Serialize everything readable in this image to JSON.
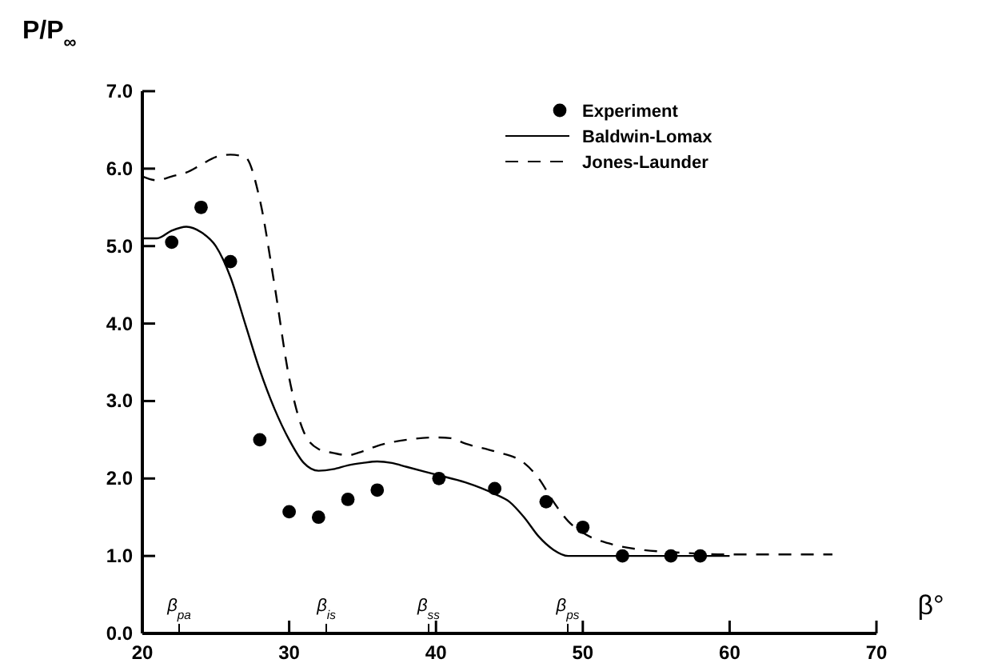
{
  "chart_data": {
    "type": "line",
    "xlabel": "β°",
    "ylabel": "P/P$_{∞}$",
    "xlim": [
      20,
      70
    ],
    "ylim": [
      0,
      7
    ],
    "xticks": [
      20,
      30,
      40,
      50,
      60,
      70
    ],
    "yticks": [
      {
        "value": 0,
        "label": "0.0"
      },
      {
        "value": 1,
        "label": "1.0"
      },
      {
        "value": 2,
        "label": "2.0"
      },
      {
        "value": 3,
        "label": "3.0"
      },
      {
        "value": 4,
        "label": "4.0"
      },
      {
        "value": 5,
        "label": "5.0"
      },
      {
        "value": 6,
        "label": "6.0"
      },
      {
        "value": 7,
        "label": "7.0"
      }
    ],
    "legend": "top right",
    "grid": false,
    "series": [
      {
        "name": "Experiment",
        "type": "scatter",
        "marker": "circle",
        "color": "#000000",
        "x": [
          22,
          24,
          26,
          28,
          30,
          32,
          34,
          36,
          40.2,
          44,
          47.5,
          50,
          52.7,
          56,
          58
        ],
        "values": [
          5.05,
          5.5,
          4.8,
          2.5,
          1.57,
          1.5,
          1.73,
          1.85,
          2.0,
          1.87,
          1.7,
          1.37,
          1.0,
          1.0,
          1.0
        ]
      },
      {
        "name": "Baldwin-Lomax",
        "line_style": "solid",
        "color": "#000000",
        "x": [
          20,
          21,
          22,
          23,
          24,
          25,
          26,
          27,
          28,
          29,
          30,
          31,
          32,
          33,
          34,
          35,
          36,
          37,
          38,
          40,
          42,
          44,
          45,
          46,
          47,
          48,
          49,
          52,
          58,
          60
        ],
        "values": [
          5.1,
          5.1,
          5.2,
          5.25,
          5.18,
          5.0,
          4.6,
          4.0,
          3.4,
          2.9,
          2.5,
          2.2,
          2.1,
          2.12,
          2.17,
          2.2,
          2.22,
          2.2,
          2.15,
          2.05,
          1.95,
          1.8,
          1.7,
          1.5,
          1.25,
          1.08,
          1.0,
          1.0,
          1.0,
          1.0
        ]
      },
      {
        "name": "Jones-Launder",
        "line_style": "dashed",
        "color": "#000000",
        "x": [
          20,
          21,
          22,
          23,
          24,
          25,
          26,
          27,
          28,
          29,
          30,
          31,
          32,
          33,
          34,
          35,
          36,
          38,
          40,
          41,
          42,
          44,
          46,
          47,
          48,
          49,
          50,
          52,
          54,
          56,
          60,
          67
        ],
        "values": [
          5.9,
          5.85,
          5.9,
          5.95,
          6.05,
          6.15,
          6.18,
          6.15,
          5.6,
          4.5,
          3.3,
          2.6,
          2.38,
          2.33,
          2.3,
          2.35,
          2.42,
          2.5,
          2.53,
          2.52,
          2.45,
          2.35,
          2.2,
          2.0,
          1.7,
          1.45,
          1.3,
          1.15,
          1.08,
          1.05,
          1.02,
          1.02
        ]
      }
    ],
    "annotations": [
      "β$_{pa}$",
      "β$_{is}$",
      "β$_{ss}$",
      "β$_{ps}$"
    ]
  }
}
